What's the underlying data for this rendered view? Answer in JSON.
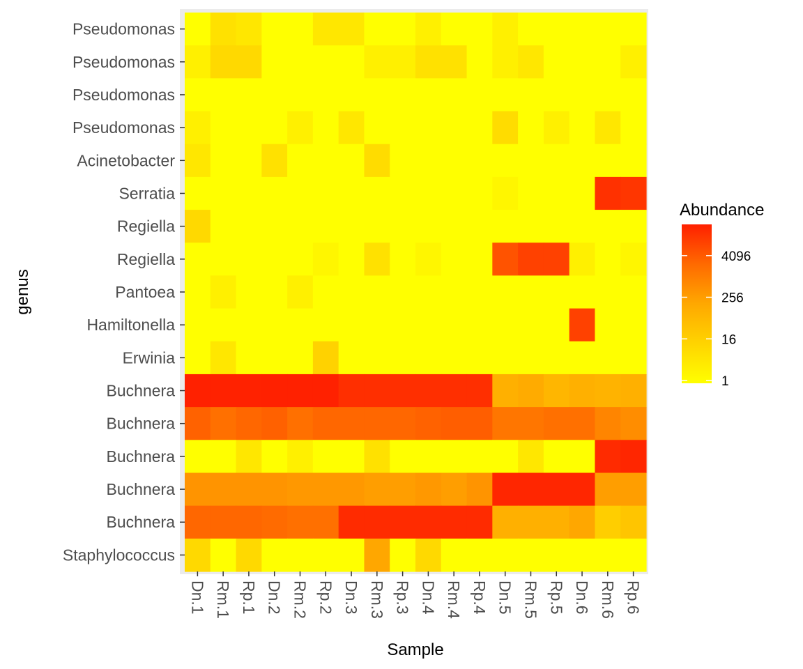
{
  "chart_data": {
    "type": "heatmap",
    "xlabel": "Sample",
    "ylabel": "genus",
    "x": [
      "Dn.1",
      "Rm.1",
      "Rp.1",
      "Dn.2",
      "Rm.2",
      "Rp.2",
      "Dn.3",
      "Rm.3",
      "Rp.3",
      "Dn.4",
      "Rm.4",
      "Rp.4",
      "Dn.5",
      "Rm.5",
      "Rp.5",
      "Dn.6",
      "Rm.6",
      "Rp.6"
    ],
    "y": [
      "Pseudomonas",
      "Pseudomonas",
      "Pseudomonas",
      "Pseudomonas",
      "Acinetobacter",
      "Serratia",
      "Regiella",
      "Regiella",
      "Pantoea",
      "Hamiltonella",
      "Erwinia",
      "Buchnera",
      "Buchnera",
      "Buchnera",
      "Buchnera",
      "Buchnera",
      "Staphylococcus"
    ],
    "color_scale": "log2",
    "color_low": "#FFFF00",
    "color_high": "#FF2000",
    "legend": {
      "title": "Abundance",
      "position": "right",
      "breaks": [
        1,
        16,
        256,
        4096
      ],
      "labels": [
        "1",
        "16",
        "256",
        "4096"
      ],
      "range": [
        1,
        32768
      ]
    },
    "values": [
      [
        1,
        4,
        3,
        1,
        1,
        3,
        3,
        1,
        1,
        2,
        1,
        1,
        2,
        1,
        1,
        1,
        1,
        1
      ],
      [
        2,
        6,
        6,
        1,
        1,
        1,
        1,
        2,
        2,
        4,
        4,
        1,
        2,
        3,
        1,
        1,
        1,
        2
      ],
      [
        1,
        1,
        1,
        1,
        1,
        1,
        1,
        1,
        1,
        1,
        1,
        1,
        1,
        1,
        1,
        1,
        1,
        1
      ],
      [
        2,
        1,
        1,
        1,
        2,
        1,
        3,
        1,
        1,
        1,
        1,
        1,
        5,
        1,
        2,
        1,
        3,
        1
      ],
      [
        3,
        1,
        1,
        4,
        1,
        1,
        1,
        5,
        1,
        1,
        1,
        1,
        1,
        1,
        1,
        1,
        1,
        1
      ],
      [
        1,
        1,
        1,
        1,
        1,
        1,
        1,
        1,
        1,
        1,
        1,
        1,
        1.5,
        1,
        1,
        1,
        15000,
        12000
      ],
      [
        6,
        1,
        1,
        1,
        1,
        1,
        1,
        1,
        1,
        1,
        1,
        1,
        1,
        1,
        1,
        1,
        1,
        1
      ],
      [
        1,
        1,
        1,
        1,
        1,
        1.5,
        1,
        4,
        1,
        1.5,
        1,
        1,
        3000,
        7000,
        7000,
        2,
        1,
        1.5
      ],
      [
        1,
        2,
        1,
        1,
        2,
        1,
        1,
        1,
        1,
        1,
        1,
        1,
        1,
        1,
        1,
        1,
        1,
        1
      ],
      [
        1,
        1,
        1,
        1,
        1,
        1,
        1,
        1,
        1,
        1,
        1,
        1,
        1,
        1,
        1,
        7000,
        1,
        1
      ],
      [
        1,
        3,
        1,
        1,
        1,
        8,
        1,
        1,
        1,
        1,
        1,
        1,
        1,
        1,
        1,
        1,
        1,
        1
      ],
      [
        32000,
        30000,
        30000,
        32000,
        32000,
        32000,
        16000,
        16000,
        16000,
        16000,
        16000,
        16000,
        40,
        50,
        30,
        40,
        35,
        40
      ],
      [
        1500,
        800,
        1200,
        1600,
        800,
        1200,
        1200,
        1200,
        1200,
        1500,
        1800,
        1800,
        600,
        600,
        800,
        800,
        300,
        200
      ],
      [
        1,
        1,
        3,
        1,
        2,
        1,
        1,
        4,
        1,
        1,
        1,
        1,
        1,
        3,
        1,
        1,
        20000,
        25000
      ],
      [
        150,
        150,
        150,
        150,
        120,
        120,
        120,
        90,
        90,
        120,
        90,
        150,
        25000,
        25000,
        25000,
        25000,
        90,
        90
      ],
      [
        1200,
        1200,
        1200,
        1000,
        800,
        800,
        20000,
        20000,
        20000,
        20000,
        20000,
        20000,
        40,
        40,
        40,
        60,
        10,
        15
      ],
      [
        6,
        1,
        6,
        1,
        1,
        1,
        1,
        60,
        1,
        6,
        1,
        1,
        1,
        1,
        1,
        1,
        1,
        1
      ]
    ]
  }
}
